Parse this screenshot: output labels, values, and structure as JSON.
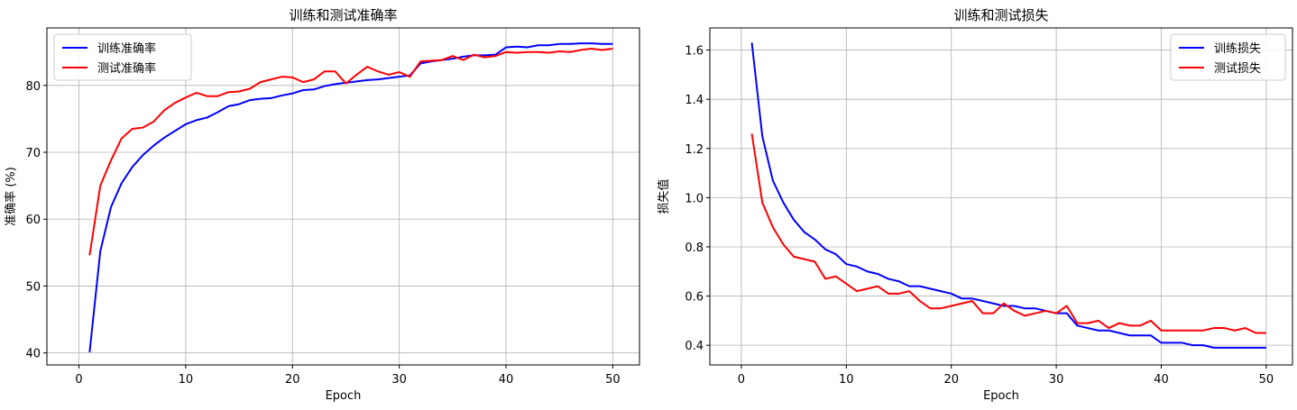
{
  "chart_data": [
    {
      "type": "line",
      "title": "训练和测试准确率",
      "xlabel": "Epoch",
      "ylabel": "准确率 (%)",
      "xlim": [
        -3,
        52.5
      ],
      "ylim": [
        38.2,
        88.6
      ],
      "xticks": [
        0,
        10,
        20,
        30,
        40,
        50
      ],
      "yticks": [
        40,
        50,
        60,
        70,
        80
      ],
      "grid": true,
      "legend": "top-left",
      "x": [
        1,
        2,
        3,
        4,
        5,
        6,
        7,
        8,
        9,
        10,
        11,
        12,
        13,
        14,
        15,
        16,
        17,
        18,
        19,
        20,
        21,
        22,
        23,
        24,
        25,
        26,
        27,
        28,
        29,
        30,
        31,
        32,
        33,
        34,
        35,
        36,
        37,
        38,
        39,
        40,
        41,
        42,
        43,
        44,
        45,
        46,
        47,
        48,
        49,
        50
      ],
      "series": [
        {
          "name": "训练准确率",
          "color": "#0000ff",
          "values": [
            40.1,
            55.2,
            61.8,
            65.4,
            67.8,
            69.6,
            71.0,
            72.2,
            73.2,
            74.2,
            74.8,
            75.2,
            76.0,
            76.9,
            77.2,
            77.8,
            78.0,
            78.1,
            78.5,
            78.8,
            79.3,
            79.4,
            79.9,
            80.2,
            80.4,
            80.6,
            80.8,
            80.9,
            81.1,
            81.3,
            81.5,
            83.3,
            83.6,
            83.8,
            84.0,
            84.3,
            84.5,
            84.5,
            84.6,
            85.7,
            85.8,
            85.7,
            86.0,
            86.0,
            86.2,
            86.2,
            86.3,
            86.3,
            86.2,
            86.2
          ]
        },
        {
          "name": "测试准确率",
          "color": "#ff0000",
          "values": [
            54.6,
            65.0,
            68.8,
            72.1,
            73.5,
            73.7,
            74.6,
            76.3,
            77.4,
            78.2,
            78.9,
            78.4,
            78.4,
            79.0,
            79.1,
            79.5,
            80.5,
            80.9,
            81.3,
            81.2,
            80.5,
            80.9,
            82.1,
            82.1,
            80.3,
            81.6,
            82.8,
            82.1,
            81.6,
            82.0,
            81.3,
            83.6,
            83.7,
            83.8,
            84.4,
            83.8,
            84.6,
            84.2,
            84.4,
            85.0,
            84.9,
            85.0,
            85.0,
            84.9,
            85.1,
            85.0,
            85.3,
            85.5,
            85.3,
            85.5
          ]
        }
      ]
    },
    {
      "type": "line",
      "title": "训练和测试损失",
      "xlabel": "Epoch",
      "ylabel": "损失值",
      "xlim": [
        -3,
        52.5
      ],
      "ylim": [
        0.32,
        1.69
      ],
      "xticks": [
        0,
        10,
        20,
        30,
        40,
        50
      ],
      "yticks": [
        0.4,
        0.6,
        0.8,
        1.0,
        1.2,
        1.4,
        1.6
      ],
      "grid": true,
      "legend": "top-right",
      "x": [
        1,
        2,
        3,
        4,
        5,
        6,
        7,
        8,
        9,
        10,
        11,
        12,
        13,
        14,
        15,
        16,
        17,
        18,
        19,
        20,
        21,
        22,
        23,
        24,
        25,
        26,
        27,
        28,
        29,
        30,
        31,
        32,
        33,
        34,
        35,
        36,
        37,
        38,
        39,
        40,
        41,
        42,
        43,
        44,
        45,
        46,
        47,
        48,
        49,
        50
      ],
      "series": [
        {
          "name": "训练损失",
          "color": "#0000ff",
          "values": [
            1.63,
            1.25,
            1.07,
            0.98,
            0.91,
            0.86,
            0.83,
            0.79,
            0.77,
            0.73,
            0.72,
            0.7,
            0.69,
            0.67,
            0.66,
            0.64,
            0.64,
            0.63,
            0.62,
            0.61,
            0.59,
            0.59,
            0.58,
            0.57,
            0.56,
            0.56,
            0.55,
            0.55,
            0.54,
            0.53,
            0.53,
            0.48,
            0.47,
            0.46,
            0.46,
            0.45,
            0.44,
            0.44,
            0.44,
            0.41,
            0.41,
            0.41,
            0.4,
            0.4,
            0.39,
            0.39,
            0.39,
            0.39,
            0.39,
            0.39
          ]
        },
        {
          "name": "测试损失",
          "color": "#ff0000",
          "values": [
            1.26,
            0.98,
            0.88,
            0.81,
            0.76,
            0.75,
            0.74,
            0.67,
            0.68,
            0.65,
            0.62,
            0.63,
            0.64,
            0.61,
            0.61,
            0.62,
            0.58,
            0.55,
            0.55,
            0.56,
            0.57,
            0.58,
            0.53,
            0.53,
            0.57,
            0.54,
            0.52,
            0.53,
            0.54,
            0.53,
            0.56,
            0.49,
            0.49,
            0.5,
            0.47,
            0.49,
            0.48,
            0.48,
            0.5,
            0.46,
            0.46,
            0.46,
            0.46,
            0.46,
            0.47,
            0.47,
            0.46,
            0.47,
            0.45,
            0.45
          ]
        }
      ]
    }
  ]
}
